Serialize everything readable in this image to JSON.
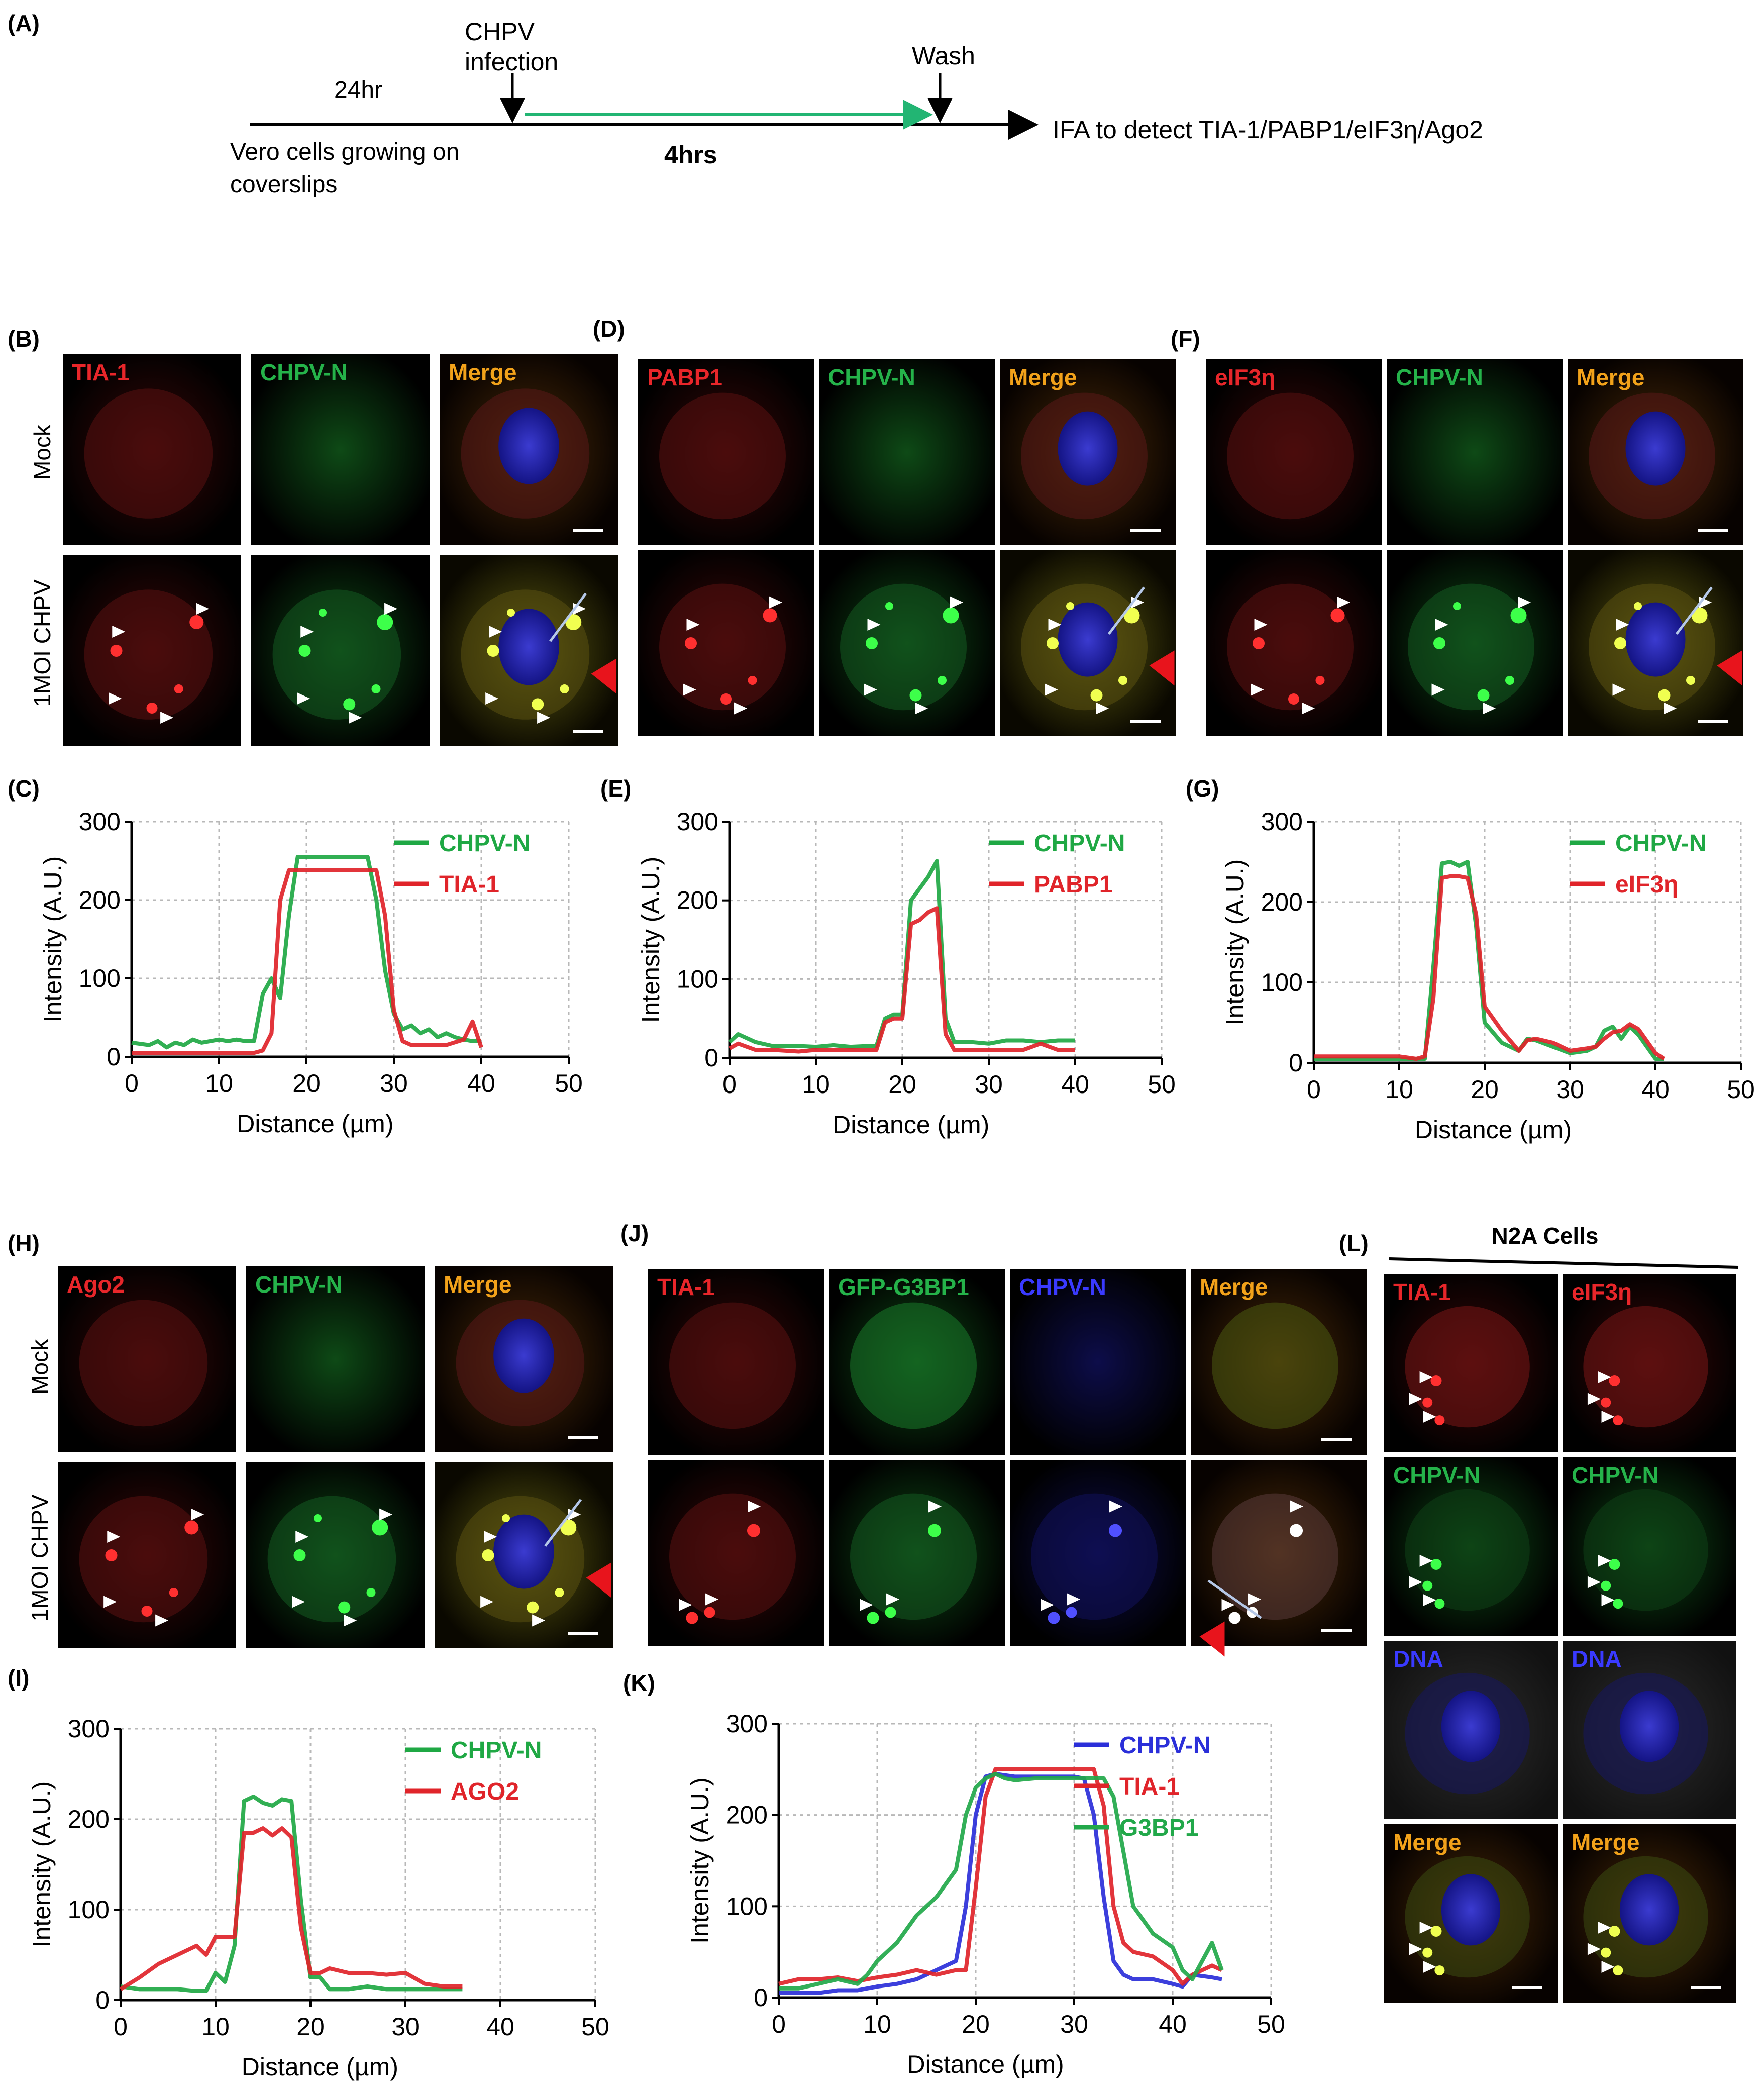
{
  "panel_letters": {
    "A": "(A)",
    "B": "(B)",
    "C": "(C)",
    "D": "(D)",
    "E": "(E)",
    "F": "(F)",
    "G": "(G)",
    "H": "(H)",
    "I": "(I)",
    "J": "(J)",
    "K": "(K)",
    "L": "(L)"
  },
  "timeline": {
    "duration_before": "24hr",
    "infection_line1": "CHPV",
    "infection_line2": "infection",
    "wash": "Wash",
    "cells_line1": "Vero cells growing on",
    "cells_line2": "coverslips",
    "duration_infection": "4hrs",
    "readout": "IFA to detect TIA-1/PABP1/eIF3η/Ago2"
  },
  "row_labels": {
    "mock": "Mock",
    "infected": "1MOI CHPV"
  },
  "panel_B": {
    "channels": [
      "TIA-1",
      "CHPV-N",
      "Merge"
    ]
  },
  "panel_D": {
    "channels": [
      "PABP1",
      "CHPV-N",
      "Merge"
    ]
  },
  "panel_F": {
    "channels": [
      "eIF3η",
      "CHPV-N",
      "Merge"
    ]
  },
  "panel_H": {
    "channels": [
      "Ago2",
      "CHPV-N",
      "Merge"
    ]
  },
  "panel_J": {
    "channels": [
      "TIA-1",
      "GFP-G3BP1",
      "CHPV-N",
      "Merge"
    ]
  },
  "panel_L": {
    "title": "N2A Cells",
    "rows": [
      [
        "TIA-1",
        "eIF3η"
      ],
      [
        "CHPV-N",
        "CHPV-N"
      ],
      [
        "DNA",
        "DNA"
      ],
      [
        "Merge",
        "Merge"
      ]
    ]
  },
  "colors": {
    "chpv_n": "#1fa844",
    "partner": "#e0242a",
    "chpv_n_blue": "#2b2fd9",
    "g3bp1": "#22a84a",
    "merge_label": "#f2a21a",
    "grid": "#b8b8b8"
  },
  "chart_data": [
    {
      "panel": "C",
      "type": "line",
      "xlabel": "Distance (µm)",
      "ylabel": "Intensity (A.U.)",
      "xlim": [
        0,
        50
      ],
      "ylim": [
        0,
        300
      ],
      "xticks": [
        0,
        10,
        20,
        30,
        40,
        50
      ],
      "yticks": [
        0,
        100,
        200,
        300
      ],
      "grid": true,
      "legend": "top-right",
      "series": [
        {
          "name": "CHPV-N",
          "color": "#1fa844",
          "x": [
            0,
            2,
            3,
            4,
            5,
            6,
            7,
            8,
            9,
            10,
            11,
            12,
            13,
            14,
            15,
            16,
            17,
            18,
            19,
            20,
            22,
            24,
            26,
            27,
            28,
            29,
            30,
            31,
            32,
            33,
            34,
            35,
            36,
            37,
            38,
            39,
            40
          ],
          "y": [
            18,
            15,
            20,
            12,
            18,
            15,
            22,
            18,
            20,
            22,
            20,
            22,
            20,
            20,
            80,
            100,
            75,
            180,
            255,
            255,
            255,
            255,
            255,
            255,
            200,
            110,
            55,
            35,
            40,
            30,
            35,
            25,
            30,
            25,
            22,
            20,
            20
          ]
        },
        {
          "name": "TIA-1",
          "color": "#e0242a",
          "x": [
            0,
            5,
            10,
            13,
            14,
            15,
            16,
            17,
            18,
            19,
            20,
            22,
            24,
            26,
            27,
            28,
            29,
            30,
            31,
            32,
            34,
            36,
            38,
            39,
            40
          ],
          "y": [
            5,
            5,
            5,
            5,
            5,
            8,
            30,
            200,
            238,
            238,
            238,
            238,
            238,
            238,
            238,
            238,
            180,
            60,
            20,
            15,
            15,
            15,
            22,
            45,
            12
          ]
        }
      ]
    },
    {
      "panel": "E",
      "type": "line",
      "xlabel": "Distance (µm)",
      "ylabel": "Intensity (A.U.)",
      "xlim": [
        0,
        50
      ],
      "ylim": [
        0,
        300
      ],
      "xticks": [
        0,
        10,
        20,
        30,
        40,
        50
      ],
      "yticks": [
        0,
        100,
        200,
        300
      ],
      "grid": true,
      "legend": "top-right",
      "series": [
        {
          "name": "CHPV-N",
          "color": "#1fa844",
          "x": [
            0,
            1,
            3,
            5,
            8,
            10,
            12,
            14,
            16,
            17,
            18,
            19,
            20,
            21,
            22,
            23,
            24,
            25,
            26,
            28,
            30,
            32,
            34,
            36,
            38,
            40
          ],
          "y": [
            20,
            30,
            20,
            15,
            15,
            14,
            16,
            14,
            15,
            15,
            50,
            55,
            55,
            200,
            215,
            230,
            250,
            50,
            20,
            20,
            18,
            22,
            22,
            20,
            22,
            22
          ]
        },
        {
          "name": "PABP1",
          "color": "#e0242a",
          "x": [
            0,
            1,
            3,
            5,
            8,
            10,
            12,
            14,
            16,
            17,
            18,
            19,
            20,
            21,
            22,
            23,
            24,
            25,
            26,
            28,
            30,
            32,
            34,
            36,
            38,
            40
          ],
          "y": [
            12,
            18,
            10,
            10,
            8,
            10,
            10,
            10,
            10,
            10,
            45,
            50,
            50,
            170,
            175,
            185,
            190,
            30,
            10,
            10,
            10,
            10,
            10,
            18,
            10,
            10
          ]
        }
      ]
    },
    {
      "panel": "G",
      "type": "line",
      "xlabel": "Distance (µm)",
      "ylabel": "Intensity (A.U.)",
      "xlim": [
        0,
        50
      ],
      "ylim": [
        0,
        300
      ],
      "xticks": [
        0,
        10,
        20,
        30,
        40,
        50
      ],
      "yticks": [
        0,
        100,
        200,
        300
      ],
      "grid": true,
      "legend": "top-right",
      "series": [
        {
          "name": "CHPV-N",
          "color": "#1fa844",
          "x": [
            0,
            5,
            10,
            12,
            13,
            14,
            15,
            16,
            17,
            18,
            19,
            20,
            22,
            24,
            25,
            26,
            28,
            30,
            32,
            33,
            34,
            35,
            36,
            37,
            38,
            40,
            41
          ],
          "y": [
            5,
            5,
            5,
            5,
            5,
            120,
            248,
            250,
            245,
            250,
            170,
            50,
            25,
            15,
            30,
            28,
            20,
            12,
            15,
            20,
            40,
            45,
            30,
            45,
            35,
            5,
            5
          ]
        },
        {
          "name": "eIF3η",
          "color": "#e0242a",
          "x": [
            0,
            5,
            10,
            12,
            13,
            14,
            15,
            16,
            17,
            18,
            19,
            20,
            22,
            24,
            25,
            26,
            28,
            30,
            32,
            33,
            34,
            35,
            36,
            37,
            38,
            40,
            41
          ],
          "y": [
            8,
            8,
            8,
            5,
            8,
            80,
            230,
            232,
            232,
            230,
            185,
            70,
            40,
            15,
            28,
            30,
            25,
            15,
            18,
            20,
            30,
            38,
            40,
            48,
            42,
            12,
            5
          ]
        }
      ]
    },
    {
      "panel": "I",
      "type": "line",
      "xlabel": "Distance (µm)",
      "ylabel": "Intensity (A.U.)",
      "xlim": [
        0,
        50
      ],
      "ylim": [
        0,
        300
      ],
      "xticks": [
        0,
        10,
        20,
        30,
        40,
        50
      ],
      "yticks": [
        0,
        100,
        200,
        300
      ],
      "grid": true,
      "legend": "top-right",
      "series": [
        {
          "name": "CHPV-N",
          "color": "#1fa844",
          "x": [
            0,
            2,
            4,
            6,
            8,
            9,
            10,
            11,
            12,
            13,
            14,
            15,
            16,
            17,
            18,
            19,
            20,
            21,
            22,
            24,
            26,
            28,
            30,
            32,
            34,
            36
          ],
          "y": [
            15,
            12,
            12,
            12,
            10,
            10,
            30,
            20,
            60,
            220,
            225,
            218,
            215,
            222,
            220,
            110,
            25,
            25,
            12,
            12,
            15,
            12,
            12,
            12,
            12,
            12
          ]
        },
        {
          "name": "AGO2",
          "color": "#e0242a",
          "x": [
            0,
            2,
            4,
            6,
            8,
            9,
            10,
            11,
            12,
            13,
            14,
            15,
            16,
            17,
            18,
            19,
            20,
            21,
            22,
            24,
            26,
            28,
            30,
            32,
            34,
            36
          ],
          "y": [
            12,
            25,
            40,
            50,
            60,
            50,
            70,
            70,
            70,
            185,
            185,
            190,
            182,
            190,
            180,
            80,
            30,
            30,
            35,
            30,
            30,
            28,
            30,
            18,
            15,
            15
          ]
        }
      ]
    },
    {
      "panel": "K",
      "type": "line",
      "xlabel": "Distance (µm)",
      "ylabel": "Intensity (A.U.)",
      "xlim": [
        0,
        50
      ],
      "ylim": [
        0,
        300
      ],
      "xticks": [
        0,
        10,
        20,
        30,
        40,
        50
      ],
      "yticks": [
        0,
        100,
        200,
        300
      ],
      "grid": true,
      "legend": "top-right",
      "series": [
        {
          "name": "CHPV-N",
          "color": "#2b2fd9",
          "x": [
            0,
            2,
            4,
            6,
            8,
            10,
            12,
            14,
            16,
            18,
            19,
            20,
            21,
            22,
            24,
            26,
            28,
            30,
            31,
            32,
            33,
            34,
            35,
            36,
            38,
            40,
            41,
            42,
            44,
            45
          ],
          "y": [
            5,
            5,
            5,
            8,
            8,
            12,
            15,
            20,
            30,
            40,
            100,
            200,
            242,
            245,
            242,
            242,
            242,
            242,
            240,
            200,
            110,
            40,
            25,
            20,
            20,
            15,
            12,
            25,
            22,
            20
          ]
        },
        {
          "name": "TIA-1",
          "color": "#e0242a",
          "x": [
            0,
            2,
            4,
            6,
            8,
            10,
            12,
            14,
            16,
            18,
            19,
            20,
            21,
            22,
            24,
            26,
            28,
            30,
            31,
            32,
            33,
            34,
            35,
            36,
            38,
            40,
            41,
            42,
            44,
            45
          ],
          "y": [
            15,
            20,
            20,
            22,
            18,
            22,
            25,
            30,
            25,
            30,
            30,
            120,
            220,
            250,
            250,
            250,
            250,
            250,
            250,
            250,
            210,
            100,
            60,
            50,
            45,
            30,
            15,
            25,
            35,
            30
          ]
        },
        {
          "name": "G3BP1",
          "color": "#22a84a",
          "x": [
            0,
            2,
            4,
            6,
            8,
            9,
            10,
            12,
            14,
            16,
            18,
            19,
            20,
            21,
            22,
            23,
            24,
            26,
            28,
            30,
            32,
            33,
            34,
            35,
            36,
            38,
            40,
            41,
            42,
            43,
            44,
            45
          ],
          "y": [
            10,
            10,
            15,
            20,
            15,
            25,
            40,
            60,
            90,
            110,
            140,
            200,
            230,
            240,
            245,
            240,
            238,
            240,
            240,
            240,
            240,
            240,
            220,
            160,
            100,
            70,
            55,
            30,
            20,
            40,
            60,
            30
          ]
        }
      ]
    }
  ]
}
